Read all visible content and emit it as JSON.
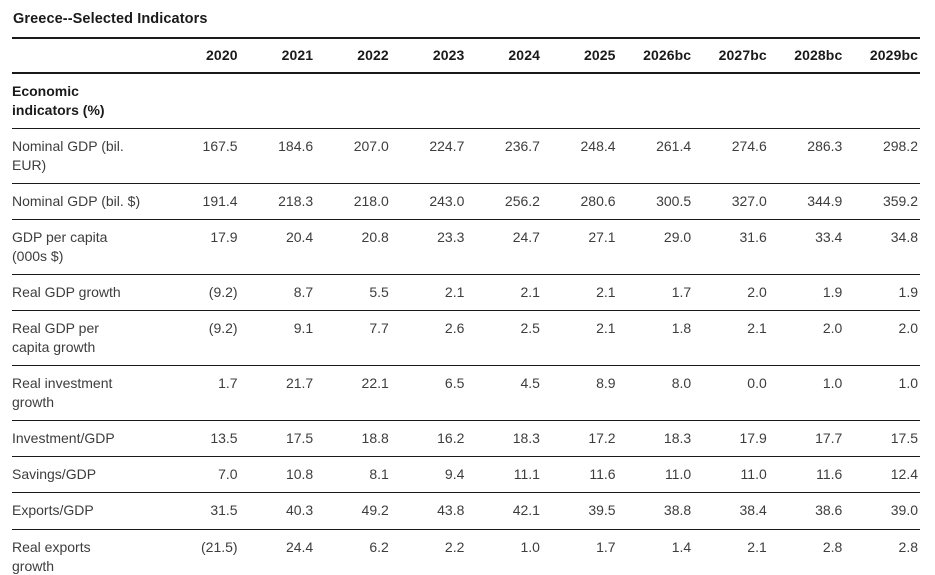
{
  "title": "Greece--Selected Indicators",
  "table": {
    "section_label": "Economic\nindicators (%)",
    "columns": [
      "2020",
      "2021",
      "2022",
      "2023",
      "2024",
      "2025",
      "2026bc",
      "2027bc",
      "2028bc",
      "2029bc"
    ],
    "rows": [
      {
        "label": "Nominal GDP (bil.\nEUR)",
        "values": [
          "167.5",
          "184.6",
          "207.0",
          "224.7",
          "236.7",
          "248.4",
          "261.4",
          "274.6",
          "286.3",
          "298.2"
        ]
      },
      {
        "label": "Nominal GDP (bil. $)",
        "values": [
          "191.4",
          "218.3",
          "218.0",
          "243.0",
          "256.2",
          "280.6",
          "300.5",
          "327.0",
          "344.9",
          "359.2"
        ]
      },
      {
        "label": "GDP per capita\n(000s $)",
        "values": [
          "17.9",
          "20.4",
          "20.8",
          "23.3",
          "24.7",
          "27.1",
          "29.0",
          "31.6",
          "33.4",
          "34.8"
        ]
      },
      {
        "label": "Real GDP growth",
        "values": [
          "(9.2)",
          "8.7",
          "5.5",
          "2.1",
          "2.1",
          "2.1",
          "1.7",
          "2.0",
          "1.9",
          "1.9"
        ]
      },
      {
        "label": "Real GDP per\ncapita growth",
        "values": [
          "(9.2)",
          "9.1",
          "7.7",
          "2.6",
          "2.5",
          "2.1",
          "1.8",
          "2.1",
          "2.0",
          "2.0"
        ]
      },
      {
        "label": "Real investment\ngrowth",
        "values": [
          "1.7",
          "21.7",
          "22.1",
          "6.5",
          "4.5",
          "8.9",
          "8.0",
          "0.0",
          "1.0",
          "1.0"
        ]
      },
      {
        "label": "Investment/GDP",
        "values": [
          "13.5",
          "17.5",
          "18.8",
          "16.2",
          "18.3",
          "17.2",
          "18.3",
          "17.9",
          "17.7",
          "17.5"
        ]
      },
      {
        "label": "Savings/GDP",
        "values": [
          "7.0",
          "10.8",
          "8.1",
          "9.4",
          "11.1",
          "11.6",
          "11.0",
          "11.0",
          "11.6",
          "12.4"
        ]
      },
      {
        "label": "Exports/GDP",
        "values": [
          "31.5",
          "40.3",
          "49.2",
          "43.8",
          "42.1",
          "39.5",
          "38.8",
          "38.4",
          "38.6",
          "39.0"
        ]
      },
      {
        "label": "Real exports\ngrowth",
        "values": [
          "(21.5)",
          "24.4",
          "6.2",
          "2.2",
          "1.0",
          "1.7",
          "1.4",
          "2.1",
          "2.8",
          "2.8"
        ]
      }
    ]
  },
  "colors": {
    "text": "#3d3d3d",
    "heading": "#1a1a1a",
    "rule": "#1a1a1a",
    "background": "#ffffff"
  }
}
